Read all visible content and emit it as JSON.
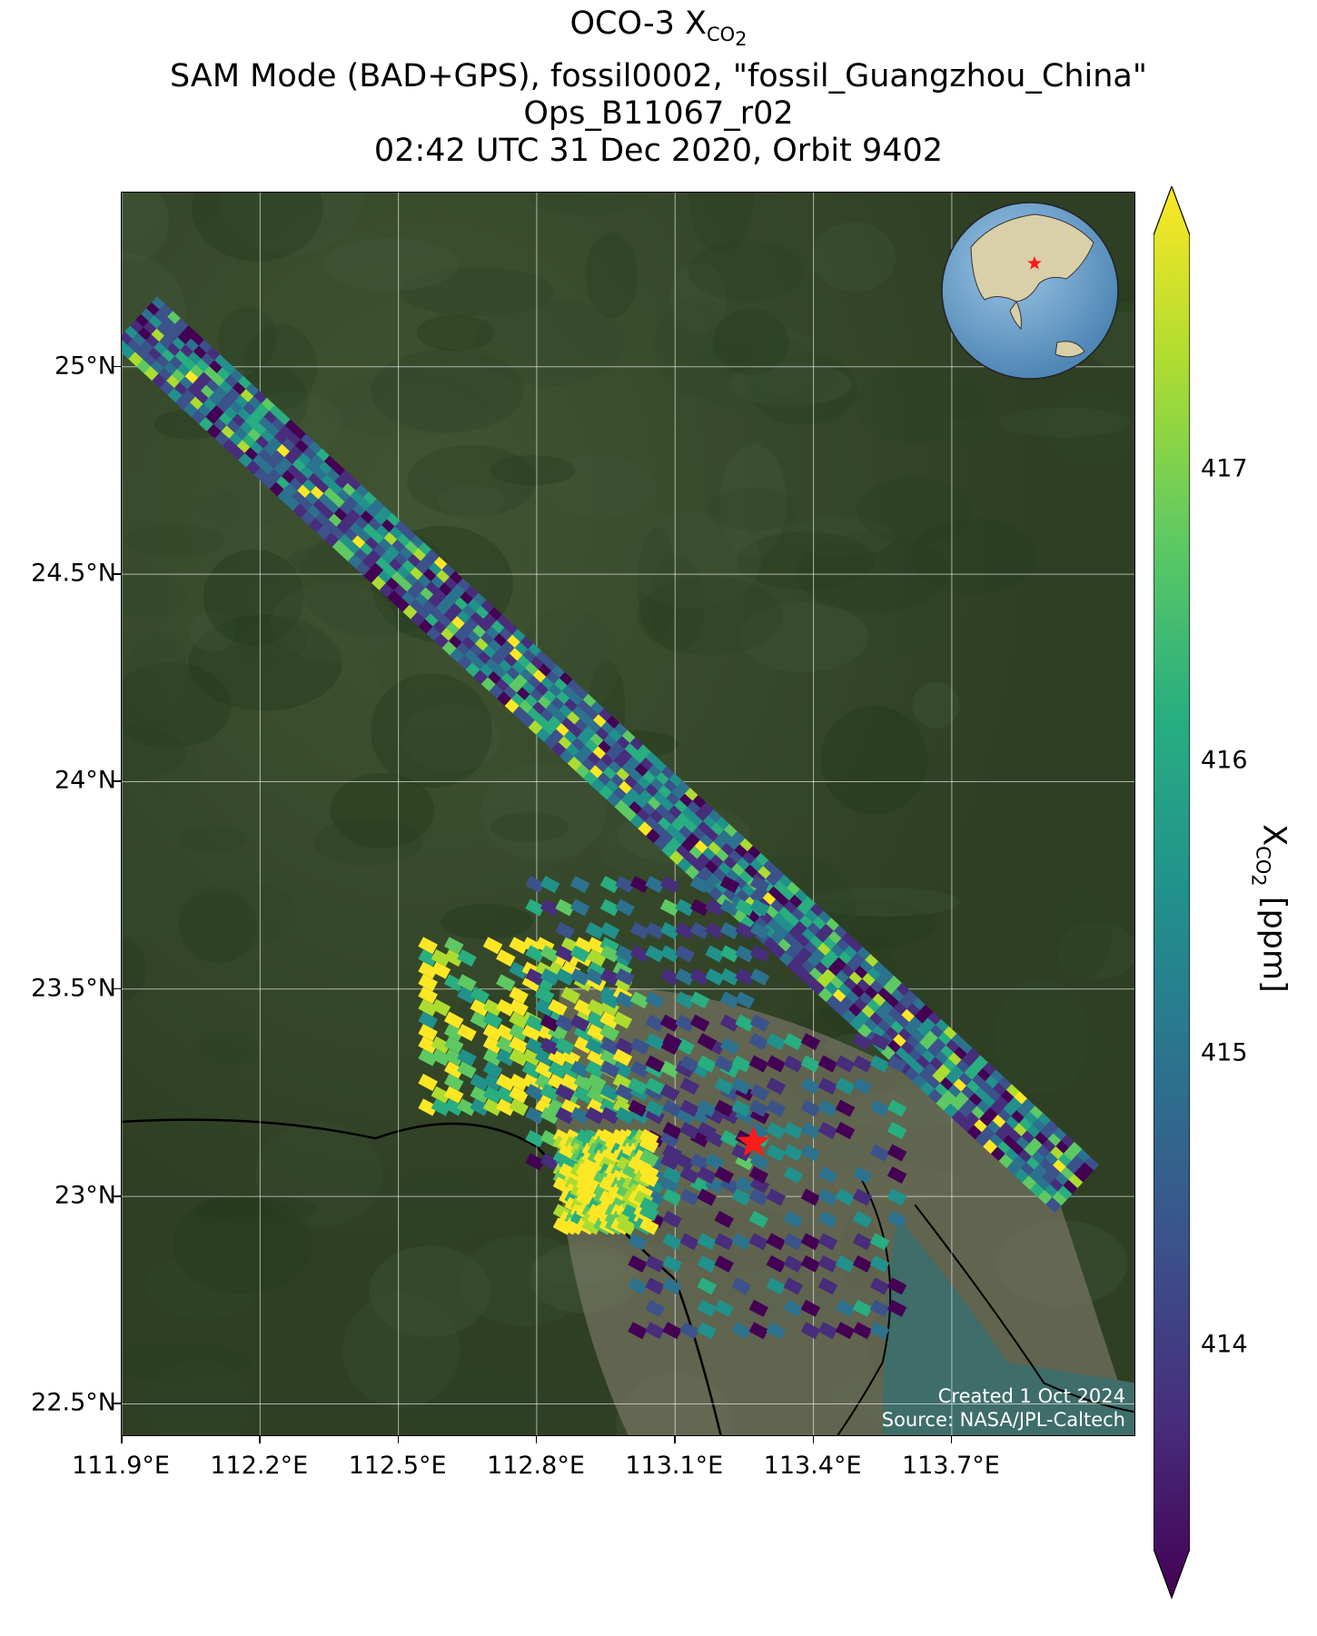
{
  "title": {
    "line1_prefix": "OCO-3 X",
    "line1_sub": "CO",
    "line1_sub2": "2",
    "line2": "SAM Mode (BAD+GPS), fossil0002, \"fossil_Guangzhou_China\"",
    "line3": "Ops_B11067_r02",
    "line4": "02:42 UTC 31 Dec 2020, Orbit 9402"
  },
  "map": {
    "lon_range": [
      111.9,
      114.1
    ],
    "lat_range": [
      22.42,
      25.42
    ],
    "lat_ticks": [
      {
        "value": 25.0,
        "label": "25°N"
      },
      {
        "value": 24.5,
        "label": "24.5°N"
      },
      {
        "value": 24.0,
        "label": "24°N"
      },
      {
        "value": 23.5,
        "label": "23.5°N"
      },
      {
        "value": 23.0,
        "label": "23°N"
      },
      {
        "value": 22.5,
        "label": "22.5°N"
      }
    ],
    "lon_ticks": [
      {
        "value": 111.9,
        "label": "111.9°E"
      },
      {
        "value": 112.2,
        "label": "112.2°E"
      },
      {
        "value": 112.5,
        "label": "112.5°E"
      },
      {
        "value": 112.8,
        "label": "112.8°E"
      },
      {
        "value": 113.1,
        "label": "113.1°E"
      },
      {
        "value": 113.4,
        "label": "113.4°E"
      },
      {
        "value": 113.7,
        "label": "113.7°E"
      }
    ],
    "target": {
      "name": "fossil_Guangzhou_China",
      "lon": 113.27,
      "lat": 23.13,
      "marker": "red-star"
    },
    "swath": {
      "from": {
        "lon": 111.93,
        "lat": 25.11
      },
      "to": {
        "lon": 113.97,
        "lat": 23.02
      }
    },
    "colors": {
      "land": "#3a4a2c",
      "water": "#3e6d6a",
      "urban": "#8a8472",
      "coastline": "#000000",
      "grid": "#ffffff"
    }
  },
  "chart_data": {
    "type": "heatmap",
    "variable": "XCO2",
    "units": "ppm",
    "colormap": "viridis",
    "clim": [
      413.3,
      417.8
    ],
    "extend": "both"
  },
  "colorbar": {
    "label_prefix": "X",
    "label_sub": "CO",
    "label_sub2": "2",
    "label_suffix": " [ppm]",
    "ticks": [
      {
        "value": 414,
        "label": "414"
      },
      {
        "value": 415,
        "label": "415"
      },
      {
        "value": 416,
        "label": "416"
      },
      {
        "value": 417,
        "label": "417"
      }
    ]
  },
  "credits": {
    "created": "Created 1 Oct 2024",
    "source": "Source: NASA/JPL-Caltech"
  }
}
